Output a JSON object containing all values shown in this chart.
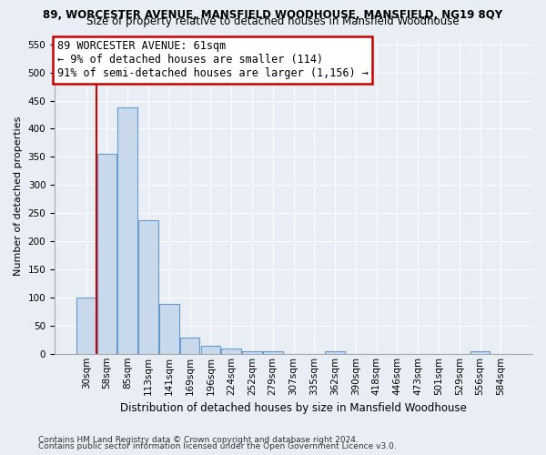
{
  "title1": "89, WORCESTER AVENUE, MANSFIELD WOODHOUSE, MANSFIELD, NG19 8QY",
  "title2": "Size of property relative to detached houses in Mansfield Woodhouse",
  "xlabel": "Distribution of detached houses by size in Mansfield Woodhouse",
  "ylabel": "Number of detached properties",
  "footnote1": "Contains HM Land Registry data © Crown copyright and database right 2024.",
  "footnote2": "Contains public sector information licensed under the Open Government Licence v3.0.",
  "bin_labels": [
    "30sqm",
    "58sqm",
    "85sqm",
    "113sqm",
    "141sqm",
    "169sqm",
    "196sqm",
    "224sqm",
    "252sqm",
    "279sqm",
    "307sqm",
    "335sqm",
    "362sqm",
    "390sqm",
    "418sqm",
    "446sqm",
    "473sqm",
    "501sqm",
    "529sqm",
    "556sqm",
    "584sqm"
  ],
  "bar_values": [
    100,
    355,
    438,
    238,
    88,
    29,
    14,
    9,
    5,
    5,
    0,
    0,
    5,
    0,
    0,
    0,
    0,
    0,
    0,
    5,
    0
  ],
  "bar_color": "#c9d9ec",
  "bar_edge_color": "#6699cc",
  "ylim": [
    0,
    560
  ],
  "yticks": [
    0,
    50,
    100,
    150,
    200,
    250,
    300,
    350,
    400,
    450,
    500,
    550
  ],
  "vline_color": "#cc0000",
  "annotation_line1": "89 WORCESTER AVENUE: 61sqm",
  "annotation_line2": "← 9% of detached houses are smaller (114)",
  "annotation_line3": "91% of semi-detached houses are larger (1,156) →",
  "annotation_box_facecolor": "white",
  "annotation_box_edgecolor": "#cc0000",
  "background_color": "#e8eef4",
  "grid_color": "white",
  "title1_fontsize": 8.5,
  "title2_fontsize": 8.5,
  "ylabel_fontsize": 8,
  "xlabel_fontsize": 8.5,
  "tick_fontsize": 7.5,
  "footnote_fontsize": 6.5
}
